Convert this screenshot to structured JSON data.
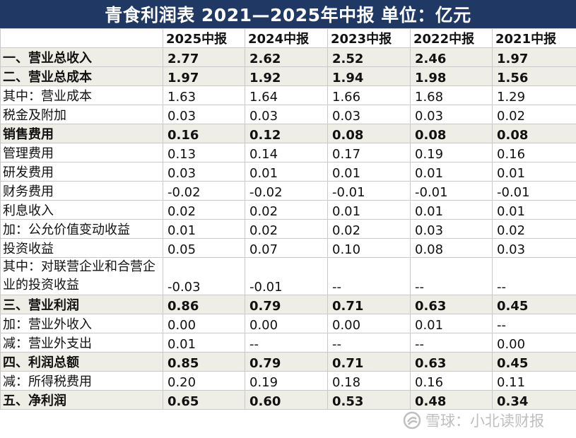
{
  "title": "青食利润表 2021—2025年中报  单位：亿元",
  "columns": [
    "2025中报",
    "2024中报",
    "2023中报",
    "2022中报",
    "2021中报"
  ],
  "rows": [
    {
      "label": "一、营业总收入",
      "highlight": true,
      "values": [
        "2.77",
        "2.62",
        "2.52",
        "2.46",
        "1.97"
      ]
    },
    {
      "label": "二、营业总成本",
      "highlight": true,
      "values": [
        "1.97",
        "1.92",
        "1.94",
        "1.98",
        "1.56"
      ]
    },
    {
      "label": "其中：营业成本",
      "highlight": false,
      "values": [
        "1.63",
        "1.64",
        "1.66",
        "1.68",
        "1.29"
      ]
    },
    {
      "label": "税金及附加",
      "highlight": false,
      "values": [
        "0.03",
        "0.03",
        "0.03",
        "0.03",
        "0.02"
      ]
    },
    {
      "label": "销售费用",
      "highlight": true,
      "values": [
        "0.16",
        "0.12",
        "0.08",
        "0.08",
        "0.08"
      ]
    },
    {
      "label": "管理费用",
      "highlight": false,
      "values": [
        "0.13",
        "0.14",
        "0.17",
        "0.19",
        "0.16"
      ]
    },
    {
      "label": "研发费用",
      "highlight": false,
      "values": [
        "0.03",
        "0.01",
        "0.01",
        "0.01",
        "0.01"
      ]
    },
    {
      "label": "财务费用",
      "highlight": false,
      "values": [
        "-0.02",
        "-0.02",
        "-0.01",
        "-0.01",
        "-0.01"
      ]
    },
    {
      "label": "利息收入",
      "highlight": false,
      "values": [
        "0.02",
        "0.02",
        "0.01",
        "0.01",
        "0.01"
      ]
    },
    {
      "label": "加：公允价值变动收益",
      "highlight": false,
      "values": [
        "0.01",
        "0.02",
        "0.02",
        "0.03",
        "0.02"
      ]
    },
    {
      "label": "投资收益",
      "highlight": false,
      "values": [
        "0.05",
        "0.07",
        "0.10",
        "0.08",
        "0.03"
      ]
    },
    {
      "label": "其中：对联营企业和合营企业的投资收益",
      "highlight": false,
      "tall": true,
      "values": [
        "-0.03",
        "-0.01",
        "--",
        "--",
        "--"
      ]
    },
    {
      "label": "三、营业利润",
      "highlight": true,
      "values": [
        "0.86",
        "0.79",
        "0.71",
        "0.63",
        "0.45"
      ]
    },
    {
      "label": "加：营业外收入",
      "highlight": false,
      "values": [
        "0.00",
        "0.00",
        "0.00",
        "0.01",
        "--"
      ]
    },
    {
      "label": "减：营业外支出",
      "highlight": false,
      "values": [
        "0.01",
        "--",
        "--",
        "--",
        "0.00"
      ]
    },
    {
      "label": "四、利润总额",
      "highlight": true,
      "values": [
        "0.85",
        "0.79",
        "0.71",
        "0.63",
        "0.45"
      ]
    },
    {
      "label": "减：所得税费用",
      "highlight": false,
      "values": [
        "0.20",
        "0.19",
        "0.18",
        "0.16",
        "0.11"
      ]
    },
    {
      "label": "五、净利润",
      "highlight": true,
      "values": [
        "0.65",
        "0.60",
        "0.53",
        "0.48",
        "0.34"
      ]
    }
  ],
  "watermark": {
    "text": "雪球：小北读财报",
    "icon": "snowball-logo-icon"
  }
}
